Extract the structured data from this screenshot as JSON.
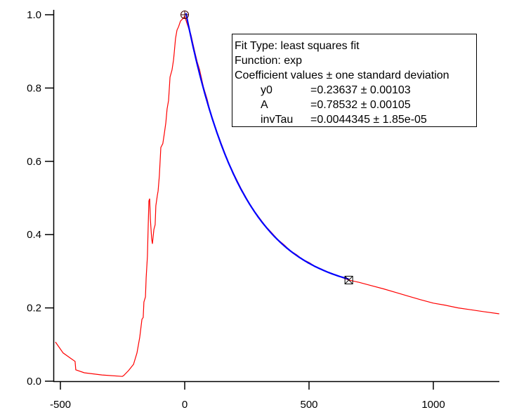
{
  "chart_data": {
    "type": "line",
    "title": "",
    "xlabel": "",
    "ylabel": "",
    "xlim": [
      -528,
      1265
    ],
    "ylim": [
      0,
      1.0
    ],
    "grid": false,
    "x_ticks": [
      -500,
      0,
      500,
      1000
    ],
    "x_tick_labels": [
      "-500",
      "0",
      "500",
      "1000"
    ],
    "y_ticks": [
      0,
      0.2,
      0.4,
      0.6,
      0.8,
      1.0
    ],
    "y_tick_labels": [
      "0.0",
      "0.2",
      "0.4",
      "0.6",
      "0.8",
      "1.0"
    ],
    "series": [
      {
        "role": "data",
        "color": "#ff0000",
        "x": [
          -520,
          -489,
          -460,
          -441,
          -438,
          -404,
          -333,
          -251,
          -246,
          -226,
          -206,
          -192,
          -181,
          -178,
          -172,
          -167,
          -164,
          -158,
          -155,
          -150,
          -147,
          -144,
          -141,
          -138,
          -133,
          -130,
          -124,
          -119,
          -116,
          -110,
          -107,
          -102,
          -96,
          -88,
          -82,
          -76,
          -71,
          -65,
          -59,
          -51,
          -45,
          -42,
          -37,
          -31,
          -25,
          -17,
          -8,
          0,
          10,
          25,
          40,
          50,
          60,
          75,
          90,
          100,
          125,
          150,
          175,
          200,
          225,
          250,
          275,
          300,
          325,
          350,
          375,
          400,
          425,
          450,
          475,
          500,
          525,
          550,
          575,
          600,
          630,
          660,
          700,
          750,
          800,
          850,
          900,
          950,
          1000,
          1050,
          1100,
          1150,
          1200,
          1265
        ],
        "y": [
          0.107,
          0.077,
          0.063,
          0.054,
          0.031,
          0.023,
          0.017,
          0.013,
          0.015,
          0.029,
          0.046,
          0.077,
          0.119,
          0.136,
          0.169,
          0.174,
          0.216,
          0.23,
          0.282,
          0.341,
          0.423,
          0.492,
          0.498,
          0.443,
          0.389,
          0.375,
          0.414,
          0.427,
          0.479,
          0.508,
          0.519,
          0.561,
          0.638,
          0.648,
          0.676,
          0.705,
          0.743,
          0.766,
          0.83,
          0.849,
          0.877,
          0.897,
          0.935,
          0.958,
          0.967,
          0.983,
          0.989,
          0.996,
          0.975,
          0.945,
          0.9,
          0.872,
          0.85,
          0.803,
          0.77,
          0.742,
          0.688,
          0.643,
          0.598,
          0.562,
          0.528,
          0.497,
          0.468,
          0.446,
          0.423,
          0.405,
          0.386,
          0.372,
          0.356,
          0.345,
          0.332,
          0.324,
          0.313,
          0.306,
          0.298,
          0.292,
          0.284,
          0.276,
          0.27,
          0.261,
          0.252,
          0.242,
          0.232,
          0.222,
          0.213,
          0.207,
          0.2,
          0.195,
          0.19,
          0.184
        ]
      },
      {
        "role": "fit",
        "color": "#0000ff",
        "function": "exp",
        "x_range": [
          5,
          660
        ]
      }
    ],
    "markers": [
      {
        "shape": "circle-cross",
        "x": 0,
        "y": 1.0,
        "color": "#400000"
      },
      {
        "shape": "box-x",
        "x": 660,
        "y": 0.276,
        "color": "#000000"
      }
    ],
    "fit_coefficients": {
      "y0": 0.23637,
      "A": 0.78532,
      "invTau": 0.0044345
    },
    "annotation": {
      "fit_type": "Fit Type: least squares fit",
      "function": "Function: exp",
      "coef_header": "Coefficient values ± one standard deviation",
      "rows": [
        {
          "name": "y0",
          "value": "=0.23637 ± 0.00103"
        },
        {
          "name": "A",
          "value": "=0.78532 ± 0.00105"
        },
        {
          "name": "invTau",
          "value": "=0.0044345 ± 1.85e-05"
        }
      ]
    }
  }
}
